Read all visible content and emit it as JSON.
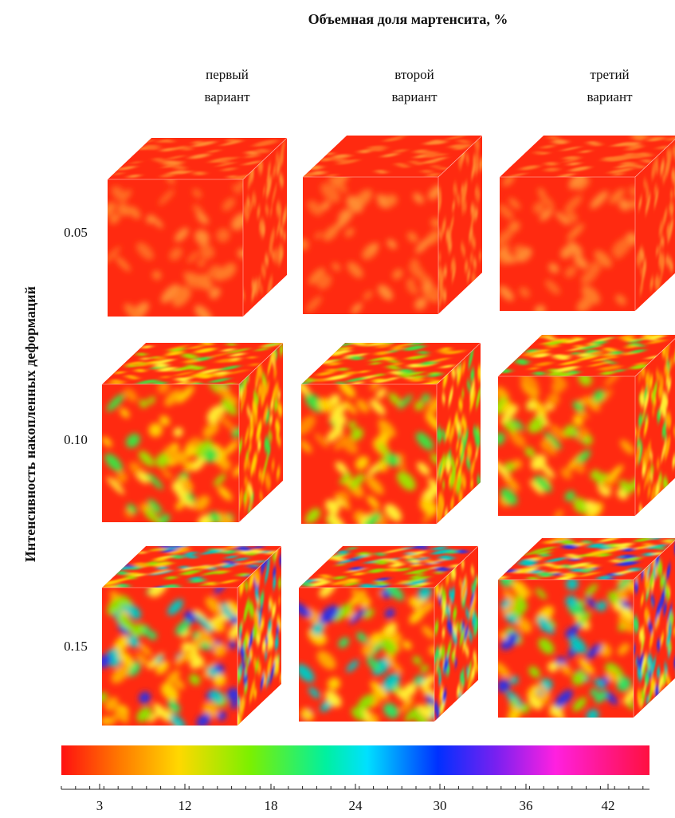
{
  "title": "Объемная доля мартенсита, %",
  "y_label": "Интенсивность накопленных деформаций",
  "columns": [
    [
      "первый",
      "вариант"
    ],
    [
      "второй",
      "вариант"
    ],
    [
      "третий",
      "вариант"
    ]
  ],
  "rows": [
    "0.05",
    "0.10",
    "0.15"
  ],
  "colorbar": {
    "ticks": [
      "3",
      "12",
      "18",
      "24",
      "30",
      "36",
      "42"
    ]
  }
}
